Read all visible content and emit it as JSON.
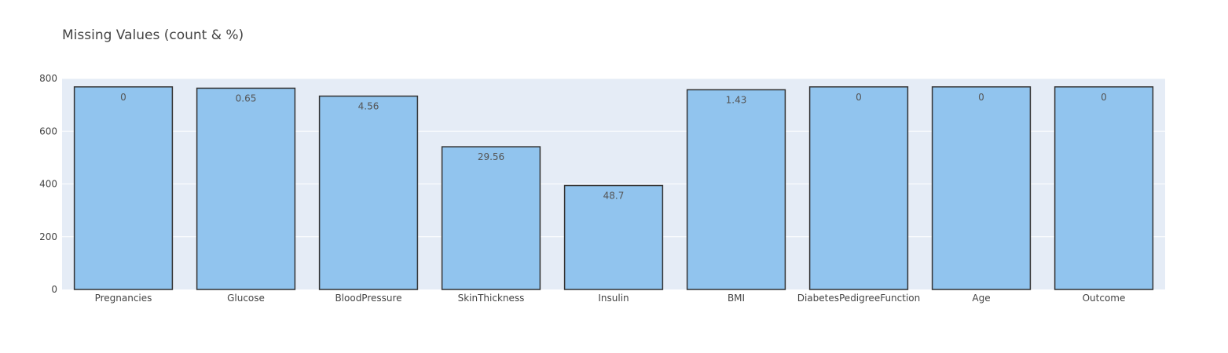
{
  "chart_data": {
    "type": "bar",
    "title": "Missing Values (count & %)",
    "xlabel": "",
    "ylabel": "",
    "ylim": [
      0,
      800
    ],
    "yticks": [
      0,
      200,
      400,
      600,
      800
    ],
    "grid": true,
    "legend": "none",
    "categories": [
      "Pregnancies",
      "Glucose",
      "BloodPressure",
      "SkinThickness",
      "Insulin",
      "BMI",
      "DiabetesPedigreeFunction",
      "Age",
      "Outcome"
    ],
    "values": [
      768,
      763,
      733,
      541,
      394,
      757,
      768,
      768,
      768
    ],
    "labels": [
      "0",
      "0.65",
      "4.56",
      "29.56",
      "48.7",
      "1.43",
      "0",
      "0",
      "0"
    ],
    "colors": {
      "plot_bg": "#e5ecf6",
      "bar_fill": "#91c4ee",
      "bar_stroke": "#333333",
      "text": "#444444"
    }
  }
}
